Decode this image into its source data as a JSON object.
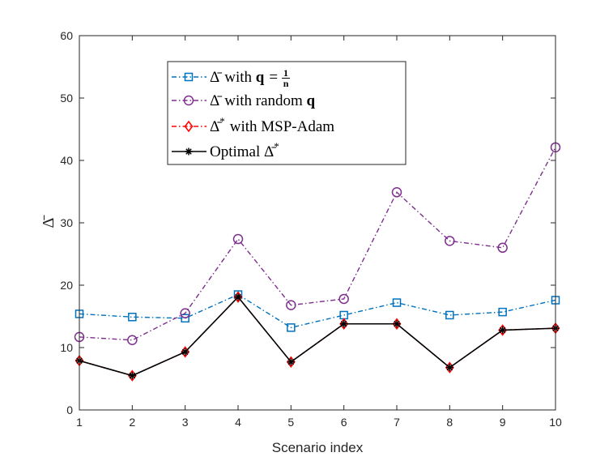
{
  "chart_data": {
    "type": "line",
    "xlabel": "Scenario index",
    "ylabel": "Δ̄",
    "x": [
      1,
      2,
      3,
      4,
      5,
      6,
      7,
      8,
      9,
      10
    ],
    "xlim": [
      1,
      10
    ],
    "ylim": [
      0,
      60
    ],
    "xticks": [
      "1",
      "2",
      "3",
      "4",
      "5",
      "6",
      "7",
      "8",
      "9",
      "10"
    ],
    "yticks": [
      "0",
      "10",
      "20",
      "30",
      "40",
      "50",
      "60"
    ],
    "grid": false,
    "legend_position": "top-left",
    "series": [
      {
        "name": "Δ̄ with q = 1/n",
        "legend_parts": {
          "symbol": "Δ̄",
          "text": "with",
          "bold": "q",
          "eq": "=",
          "num": "1",
          "den": "n"
        },
        "color": "#0072BD",
        "line_style": "dash-dot",
        "marker": "square",
        "values": [
          15.4,
          14.9,
          14.7,
          18.5,
          13.2,
          15.2,
          17.2,
          15.2,
          15.7,
          17.6
        ]
      },
      {
        "name": "Δ̄ with random q",
        "legend_parts": {
          "symbol": "Δ̄",
          "text": "with random",
          "bold": "q"
        },
        "color": "#7E2F8E",
        "line_style": "dash-dot",
        "marker": "circle",
        "values": [
          11.7,
          11.2,
          15.5,
          27.4,
          16.8,
          17.8,
          34.9,
          27.1,
          26.0,
          42.1
        ]
      },
      {
        "name": "Δ̄* with MSP-Adam",
        "legend_parts": {
          "symbol": "Δ̄",
          "sup": "*",
          "text": "with MSP-Adam"
        },
        "color": "#FF0000",
        "line_style": "dash-dot",
        "marker": "diamond",
        "values": [
          7.9,
          5.5,
          9.3,
          18.1,
          7.7,
          13.8,
          13.8,
          6.8,
          12.8,
          13.1
        ]
      },
      {
        "name": "Optimal Δ̄*",
        "legend_parts": {
          "text": "Optimal",
          "symbol": "Δ̄",
          "sup": "*"
        },
        "color": "#000000",
        "line_style": "solid",
        "marker": "asterisk",
        "values": [
          7.9,
          5.5,
          9.3,
          18.1,
          7.7,
          13.8,
          13.8,
          6.8,
          12.8,
          13.1
        ]
      }
    ]
  }
}
